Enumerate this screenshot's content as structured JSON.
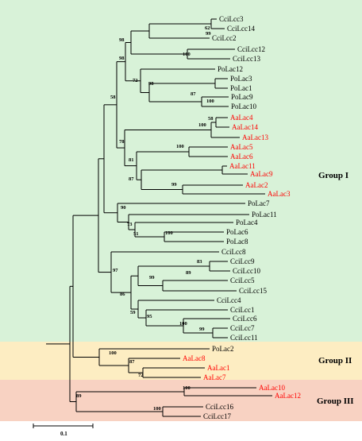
{
  "colors": {
    "group_I_bg": "#d8f2d8",
    "group_II_bg": "#fdedc2",
    "group_III_bg": "#f8d2c2",
    "aa_leaf": "#ff0000",
    "other_leaf": "#000000",
    "branch": "#000000"
  },
  "groups": [
    {
      "id": "g1",
      "label": "Group I"
    },
    {
      "id": "g2",
      "label": "Group II"
    },
    {
      "id": "g3",
      "label": "Group III"
    }
  ],
  "scale_bar": {
    "label": "0.1"
  },
  "leaves": [
    {
      "id": "CciLcc3",
      "label": "CciLcc3",
      "species": "Cci"
    },
    {
      "id": "CciLcc14",
      "label": "CciLcc14",
      "species": "Cci"
    },
    {
      "id": "CciLcc2",
      "label": "CciLcc2",
      "species": "Cci"
    },
    {
      "id": "CciLcc12",
      "label": "CciLcc12",
      "species": "Cci"
    },
    {
      "id": "CciLcc13",
      "label": "CciLcc13",
      "species": "Cci"
    },
    {
      "id": "PoLac12",
      "label": "PoLac12",
      "species": "Po"
    },
    {
      "id": "PoLac3",
      "label": "PoLac3",
      "species": "Po"
    },
    {
      "id": "PoLac1",
      "label": "PoLac1",
      "species": "Po"
    },
    {
      "id": "PoLac9",
      "label": "PoLac9",
      "species": "Po"
    },
    {
      "id": "PoLac10",
      "label": "PoLac10",
      "species": "Po"
    },
    {
      "id": "AaLac4",
      "label": "AaLac4",
      "species": "Aa"
    },
    {
      "id": "AaLac14",
      "label": "AaLac14",
      "species": "Aa"
    },
    {
      "id": "AaLac13",
      "label": "AaLac13",
      "species": "Aa"
    },
    {
      "id": "AaLac5",
      "label": "AaLac5",
      "species": "Aa"
    },
    {
      "id": "AaLac6",
      "label": "AaLac6",
      "species": "Aa"
    },
    {
      "id": "AaLac11",
      "label": "AaLac11",
      "species": "Aa"
    },
    {
      "id": "AaLac9",
      "label": "AaLac9",
      "species": "Aa"
    },
    {
      "id": "AaLac2",
      "label": "AaLac2",
      "species": "Aa"
    },
    {
      "id": "AaLac3",
      "label": "AaLac3",
      "species": "Aa"
    },
    {
      "id": "PoLac7",
      "label": "PoLac7",
      "species": "Po"
    },
    {
      "id": "PoLac11",
      "label": "PoLac11",
      "species": "Po"
    },
    {
      "id": "PoLac4",
      "label": "PoLac4",
      "species": "Po"
    },
    {
      "id": "PoLac6",
      "label": "PoLac6",
      "species": "Po"
    },
    {
      "id": "PoLac8",
      "label": "PoLac8",
      "species": "Po"
    },
    {
      "id": "CciLcc8",
      "label": "CciLcc8",
      "species": "Cci"
    },
    {
      "id": "CciLcc9",
      "label": "CciLcc9",
      "species": "Cci"
    },
    {
      "id": "CciLcc10",
      "label": "CciLcc10",
      "species": "Cci"
    },
    {
      "id": "CciLcc5",
      "label": "CciLcc5",
      "species": "Cci"
    },
    {
      "id": "CciLcc15",
      "label": "CciLcc15",
      "species": "Cci"
    },
    {
      "id": "CciLcc4",
      "label": "CciLcc4",
      "species": "Cci"
    },
    {
      "id": "CciLcc1",
      "label": "CciLcc1",
      "species": "Cci"
    },
    {
      "id": "CciLcc6",
      "label": "CciLcc6",
      "species": "Cci"
    },
    {
      "id": "CciLcc7",
      "label": "CciLcc7",
      "species": "Cci"
    },
    {
      "id": "CciLcc11",
      "label": "CciLcc11",
      "species": "Cci"
    },
    {
      "id": "PoLac2",
      "label": "PoLac2",
      "species": "Po"
    },
    {
      "id": "AaLac8",
      "label": "AaLac8",
      "species": "Aa"
    },
    {
      "id": "AaLac1",
      "label": "AaLac1",
      "species": "Aa"
    },
    {
      "id": "AaLac7",
      "label": "AaLac7",
      "species": "Aa"
    },
    {
      "id": "AaLac10",
      "label": "AaLac10",
      "species": "Aa"
    },
    {
      "id": "AaLac12",
      "label": "AaLac12",
      "species": "Aa"
    },
    {
      "id": "CciLcc16",
      "label": "CciLcc16",
      "species": "Cci"
    },
    {
      "id": "CciLcc17",
      "label": "CciLcc17",
      "species": "Cci"
    }
  ],
  "bootstrap_values": [
    "62",
    "99",
    "98",
    "100",
    "98",
    "72",
    "98",
    "87",
    "100",
    "58",
    "58",
    "100",
    "78",
    "100",
    "81",
    "99",
    "87",
    "90",
    "73",
    "51",
    "100",
    "83",
    "89",
    "99",
    "97",
    "86",
    "59",
    "95",
    "100",
    "99",
    "100",
    "87",
    "72",
    "100",
    "100",
    "89"
  ]
}
